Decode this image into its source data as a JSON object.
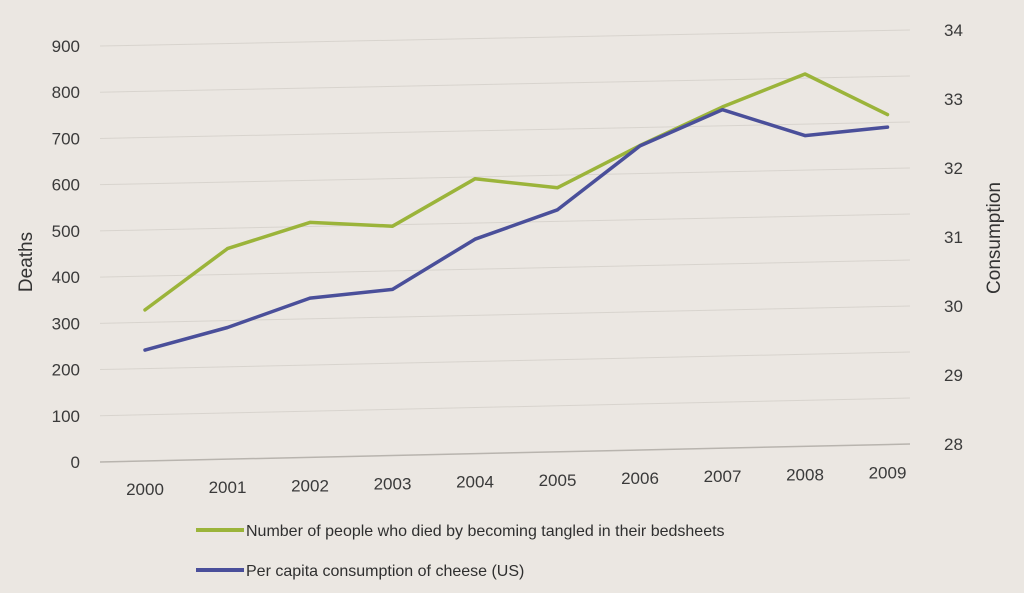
{
  "chart_data": {
    "type": "line",
    "categories": [
      "2000",
      "2001",
      "2002",
      "2003",
      "2004",
      "2005",
      "2006",
      "2007",
      "2008",
      "2009"
    ],
    "series": [
      {
        "name": "Number of people who died by becoming tangled in their bedsheets",
        "axis": "left",
        "color": "#9bb43a",
        "values": [
          327,
          456,
          509,
          497,
          596,
          573,
          661,
          741,
          809,
          717
        ]
      },
      {
        "name": "Per capita consumption of cheese (US)",
        "axis": "right",
        "color": "#4a4f9a",
        "values": [
          29.6,
          29.9,
          30.3,
          30.4,
          31.1,
          31.5,
          32.4,
          32.9,
          32.5,
          32.6
        ]
      }
    ],
    "left_axis": {
      "label": "Deaths",
      "range": [
        0,
        900
      ],
      "ticks": [
        "0",
        "100",
        "200",
        "300",
        "400",
        "500",
        "600",
        "700",
        "800",
        "900"
      ]
    },
    "right_axis": {
      "label": "Consumption",
      "range": [
        28,
        34
      ],
      "ticks": [
        "28",
        "29",
        "30",
        "31",
        "32",
        "33",
        "34"
      ]
    },
    "grid": true,
    "legend_position": "bottom"
  }
}
